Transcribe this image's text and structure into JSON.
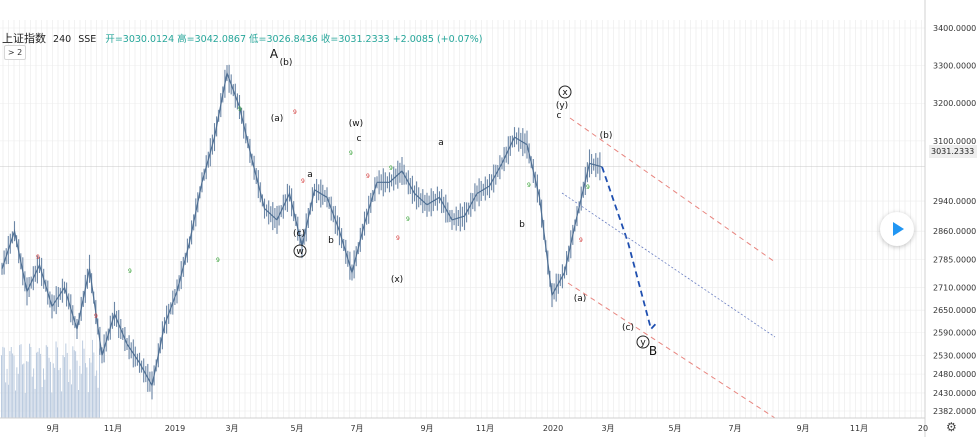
{
  "header": {
    "symbol": "上证指数",
    "timeframe": "240",
    "exchange": "SSE",
    "ohlc": "开=3030.0124 高=3042.0867 低=3026.8436 收=3031.2333 +2.0085 (+0.07%)",
    "collapse_label": "> 2"
  },
  "icons": {
    "play": "play-icon",
    "settings": "gear-icon"
  },
  "chart_data": {
    "type": "line",
    "symbol": "上证指数",
    "last_price": 3031.2333,
    "last_price_label": "3031.2333",
    "y_ticks": [
      "3400.0000",
      "3300.0000",
      "3200.0000",
      "3100.0000",
      "3031.2333",
      "2940.0000",
      "2860.0000",
      "2785.0000",
      "2710.0000",
      "2650.0000",
      "2590.0000",
      "2530.0000",
      "2480.0000",
      "2430.0000",
      "2382.0000"
    ],
    "x_ticks": [
      "9月",
      "11月",
      "2019",
      "3月",
      "5月",
      "7月",
      "9月",
      "11月",
      "2020",
      "3月",
      "5月",
      "7月",
      "9月",
      "11月",
      "20"
    ],
    "series": [
      {
        "values": [
          2760,
          2860,
          2700,
          2770,
          2660,
          2710,
          2600,
          2760,
          2530,
          2640,
          2560,
          2510,
          2450,
          2610,
          2700,
          2830,
          2990,
          3110,
          3280,
          3190,
          3050,
          2920,
          2890,
          2960,
          2820,
          2970,
          2950,
          2860,
          2750,
          2880,
          2990,
          2990,
          3020,
          2960,
          2930,
          2950,
          2890,
          2900,
          2960,
          2980,
          3040,
          3110,
          3090,
          2950,
          2690,
          2750,
          2900,
          3040,
          3031
        ]
      }
    ],
    "waves": [
      "A",
      "(b)",
      "(a)",
      "a",
      "(c)",
      "w",
      "b",
      "(w)",
      "c",
      "(x)",
      "a",
      "b",
      "x",
      "(y)",
      "c",
      "(b)",
      "(a)",
      "(c)",
      "y",
      "B"
    ],
    "projection": [
      3031,
      2830,
      2600,
      2620
    ],
    "channel_lines": "dashed",
    "grid": true,
    "legend": "none",
    "volume": "present in early part of chart"
  }
}
